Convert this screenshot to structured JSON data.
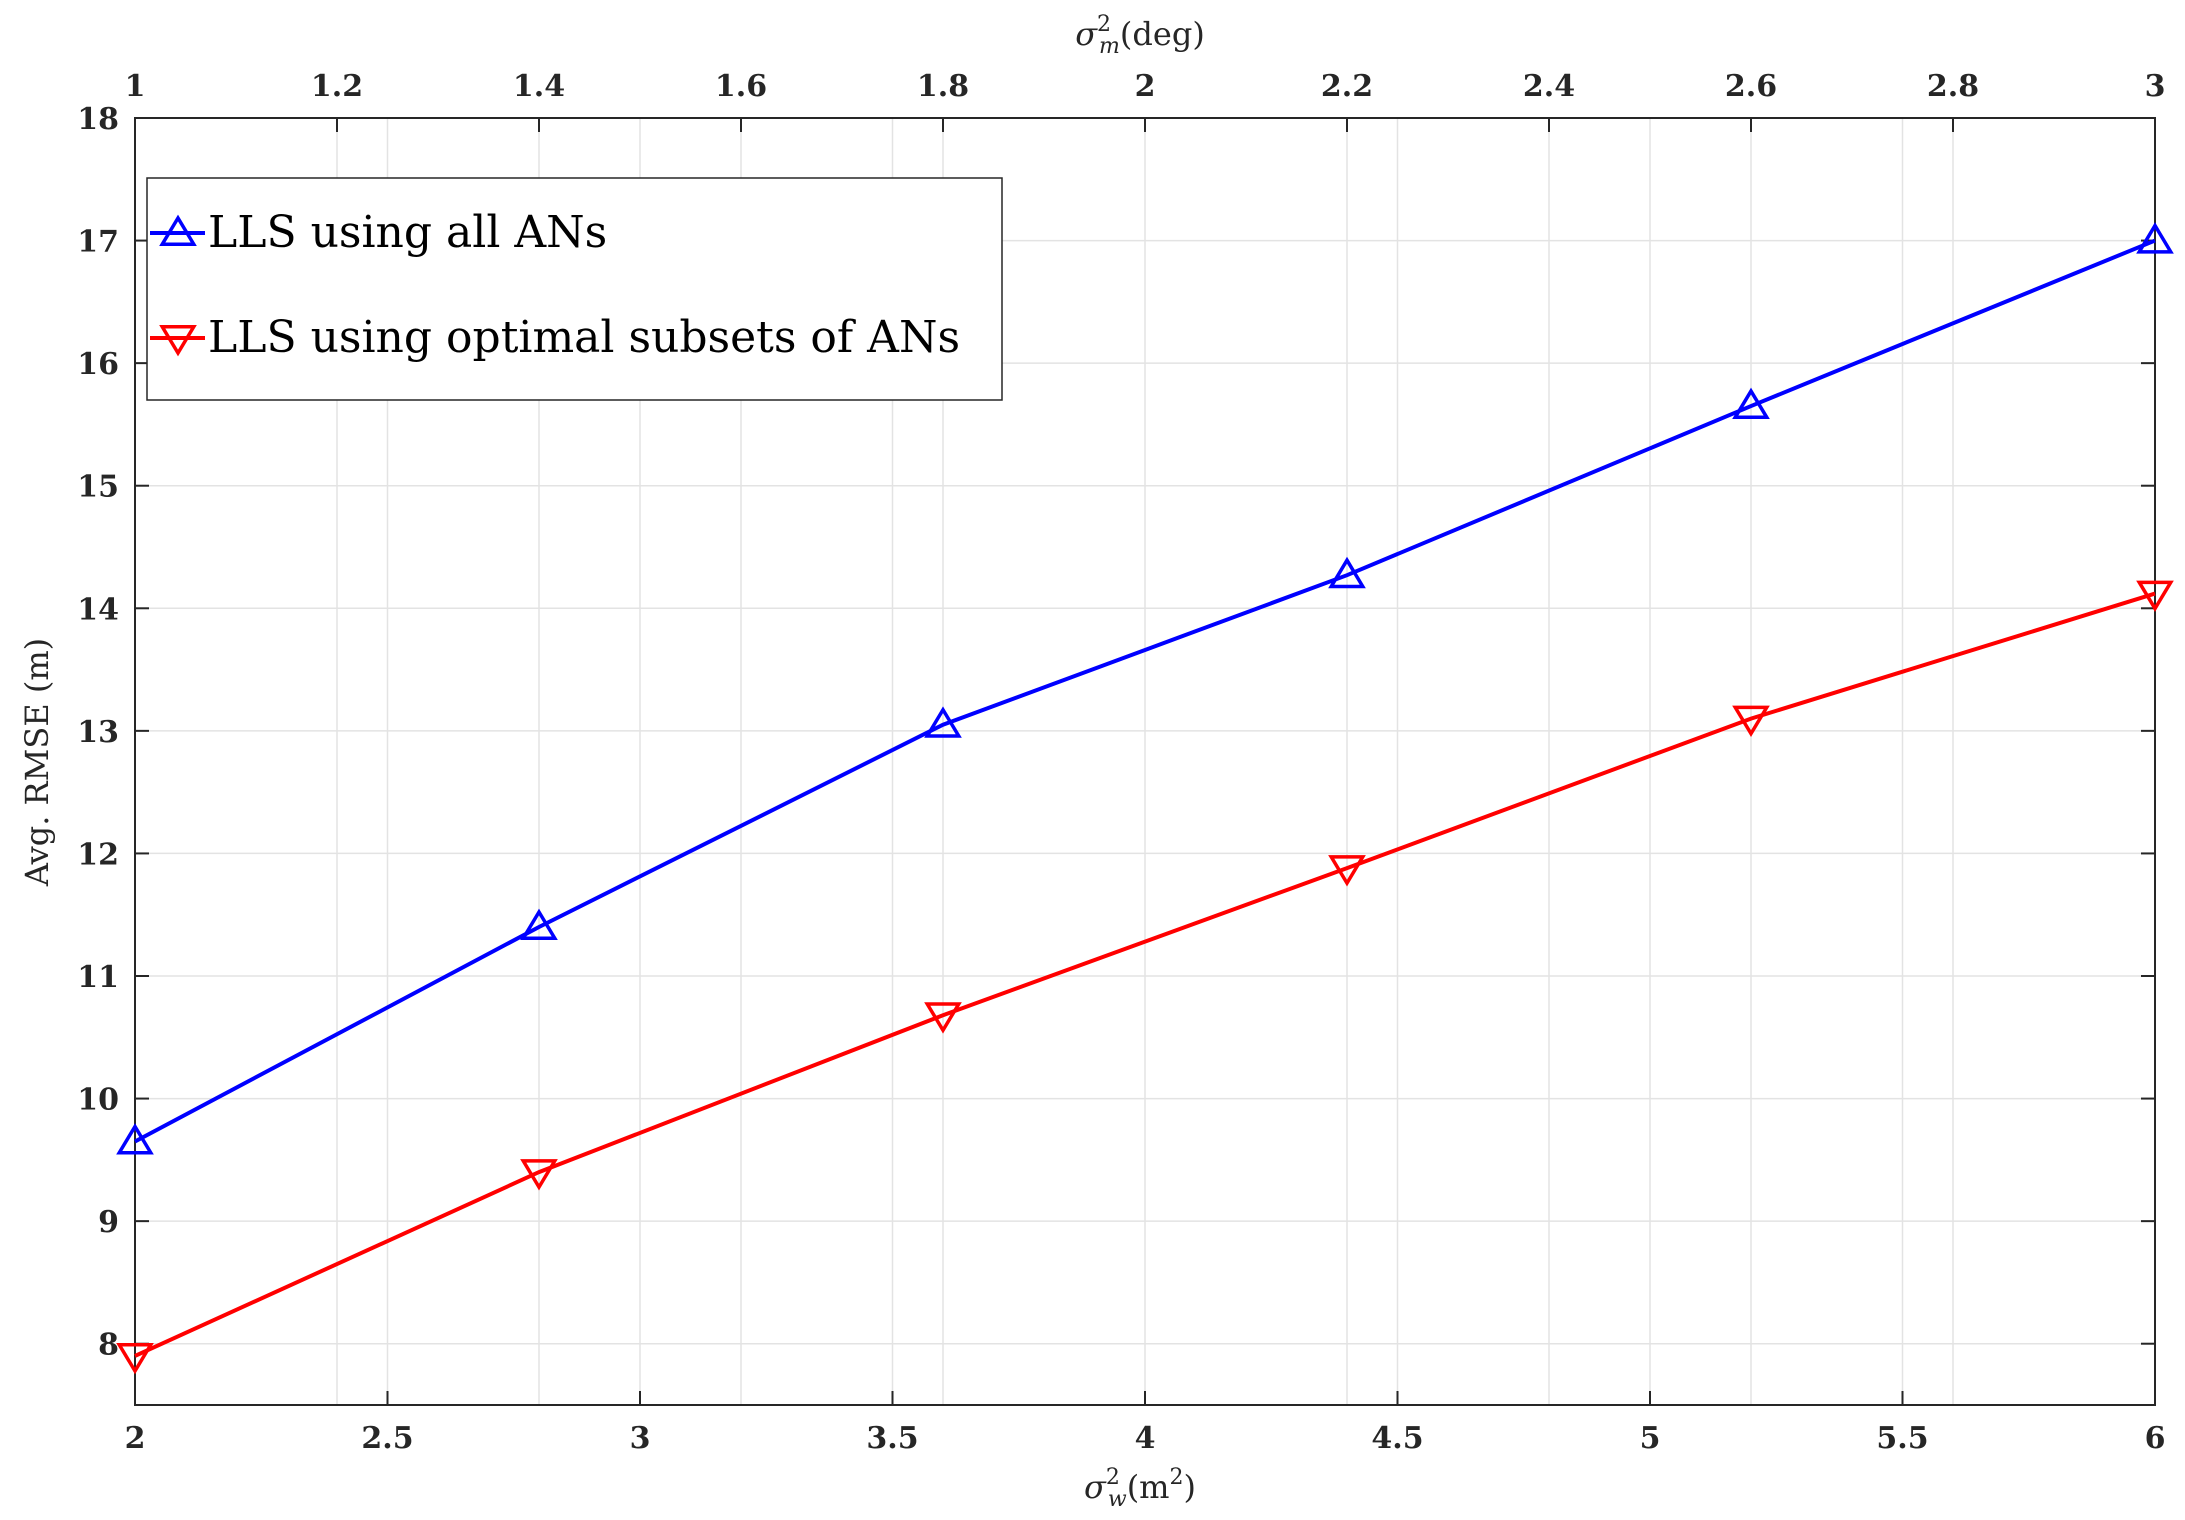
{
  "chart_data": {
    "type": "line",
    "xlabel": "σ_w^2(m^2)",
    "x2label": "σ_m^2(deg)",
    "ylabel": "Avg. RMSE (m)",
    "xlim": [
      2,
      6
    ],
    "x2lim": [
      1,
      3
    ],
    "ylim": [
      7.5,
      18
    ],
    "xticks": [
      "2",
      "2.5",
      "3",
      "3.5",
      "4",
      "4.5",
      "5",
      "5.5",
      "6"
    ],
    "x2ticks": [
      "1",
      "1.2",
      "1.4",
      "1.6",
      "1.8",
      "2",
      "2.2",
      "2.4",
      "2.6",
      "2.8",
      "3"
    ],
    "yticks": [
      "8",
      "9",
      "10",
      "11",
      "12",
      "13",
      "14",
      "15",
      "16",
      "17",
      "18"
    ],
    "grid": true,
    "legend_position": "top-left",
    "x": [
      2,
      2.8,
      3.6,
      4.4,
      5.2,
      6
    ],
    "series": [
      {
        "name": "LLS using all ANs",
        "color": "#0000ff",
        "marker": "triangle-up",
        "values": [
          9.65,
          11.4,
          13.05,
          14.27,
          15.65,
          17.0
        ]
      },
      {
        "name": "LLS using optimal subsets of ANs",
        "color": "#ff0000",
        "marker": "triangle-down",
        "values": [
          7.9,
          9.4,
          10.68,
          11.88,
          13.1,
          14.12
        ]
      }
    ]
  }
}
